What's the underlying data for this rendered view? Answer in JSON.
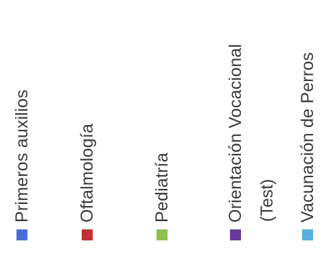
{
  "chart_data": {
    "type": "bar",
    "legend": {
      "placement": "rotated",
      "entries": [
        {
          "label": "Primeros auxilios",
          "color": "#4a6fd4"
        },
        {
          "label": "Oftalmología",
          "color": "#c03030"
        },
        {
          "label": "Pediatría",
          "color": "#8cc050"
        },
        {
          "label": "Orientación Vocacional",
          "label_line2": "(Test)",
          "color": "#6a3a9a"
        },
        {
          "label": "Vacunación de Perros",
          "color": "#5aaee0"
        }
      ]
    }
  }
}
